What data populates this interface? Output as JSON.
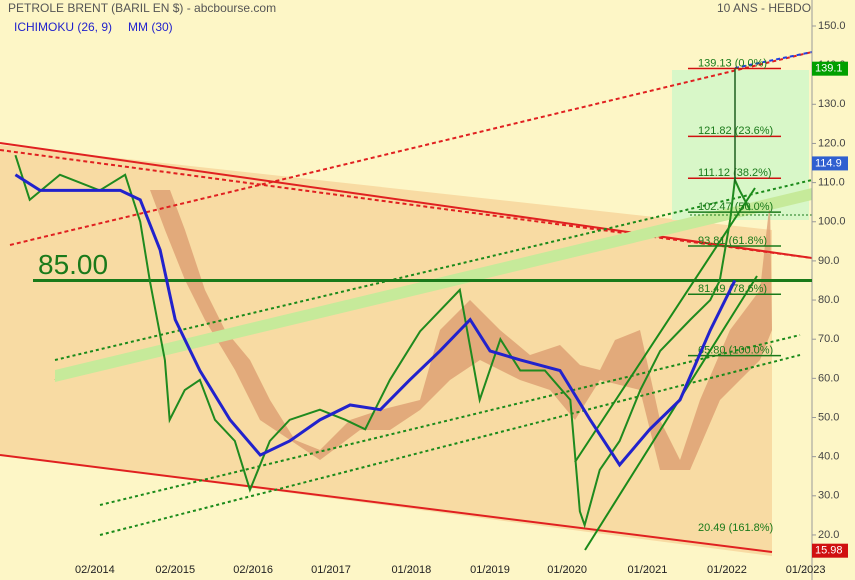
{
  "chart_data": {
    "type": "line",
    "title": "PETROLE BRENT (BARIL EN $) - abcbourse.com",
    "subtitle": "10 ANS - HEBDO",
    "indicators": [
      "ICHIMOKU (26, 9)",
      "MM (30)"
    ],
    "xlim": [
      2012.886,
      2023.1
    ],
    "ylim": [
      15,
      152
    ],
    "xticks": [
      {
        "value": 2014.08,
        "label": "02/2014"
      },
      {
        "value": 2015.09,
        "label": "02/2015"
      },
      {
        "value": 2016.07,
        "label": "02/2016"
      },
      {
        "value": 2017.05,
        "label": "01/2017"
      },
      {
        "value": 2018.06,
        "label": "01/2018"
      },
      {
        "value": 2019.05,
        "label": "01/2019"
      },
      {
        "value": 2020.02,
        "label": "01/2020"
      },
      {
        "value": 2021.03,
        "label": "01/2021"
      },
      {
        "value": 2022.03,
        "label": "01/2022"
      },
      {
        "value": 2023.02,
        "label": "01/2023"
      }
    ],
    "yticks": [
      {
        "value": 150,
        "label": "150.0"
      },
      {
        "value": 140,
        "label": "140.0"
      },
      {
        "value": 130,
        "label": "130.0"
      },
      {
        "value": 120,
        "label": "120.0"
      },
      {
        "value": 110,
        "label": "110.0"
      },
      {
        "value": 100,
        "label": "100.0"
      },
      {
        "value": 90,
        "label": "90.0"
      },
      {
        "value": 80,
        "label": "80.0"
      },
      {
        "value": 70,
        "label": "70.0"
      },
      {
        "value": 60,
        "label": "60.0"
      },
      {
        "value": 50,
        "label": "50.0"
      },
      {
        "value": 40,
        "label": "40.0"
      },
      {
        "value": 30,
        "label": "30.0"
      },
      {
        "value": 20,
        "label": "20.0"
      }
    ],
    "series": [
      {
        "name": "PETROLE BRENT",
        "color": "#1f8a1f",
        "x": [
          2013.08,
          2013.26,
          2013.64,
          2014.14,
          2014.46,
          2014.65,
          2014.77,
          2014.96,
          2015.02,
          2015.21,
          2015.4,
          2015.59,
          2015.84,
          2016.03,
          2016.28,
          2016.53,
          2016.91,
          2017.23,
          2017.48,
          2017.79,
          2018.17,
          2018.67,
          2018.92,
          2019.18,
          2019.43,
          2019.74,
          2020.06,
          2020.18,
          2020.24,
          2020.43,
          2020.68,
          2020.94,
          2021.19,
          2021.57,
          2021.82,
          2021.94,
          2022.07,
          2022.13,
          2022.19,
          2022.32
        ],
        "values": [
          117,
          105.6,
          112,
          108,
          112,
          100,
          85,
          64.7,
          49.4,
          57,
          59.6,
          49.4,
          44,
          31.5,
          44,
          49.4,
          52,
          49.4,
          47,
          59.6,
          72,
          82.6,
          54.5,
          70,
          62,
          62,
          54.5,
          26,
          22.5,
          36.6,
          44,
          57,
          67,
          75,
          80,
          85,
          100.4,
          110.7,
          108,
          103
        ]
      },
      {
        "name": "MM (30)",
        "color": "#2222cc",
        "x": [
          2013.08,
          2013.39,
          2013.89,
          2014.4,
          2014.65,
          2014.9,
          2015.09,
          2015.4,
          2015.78,
          2016.16,
          2016.53,
          2016.91,
          2017.29,
          2017.67,
          2018.04,
          2018.42,
          2018.8,
          2019.05,
          2019.43,
          2019.93,
          2020.31,
          2020.68,
          2021.06,
          2021.44,
          2021.82,
          2022.13
        ],
        "values": [
          112,
          108,
          108,
          108,
          105.6,
          92.8,
          75,
          62,
          49.4,
          40.4,
          44,
          49.4,
          53.2,
          52,
          59.6,
          67,
          75,
          67,
          64.7,
          62,
          49.4,
          37.9,
          47,
          54.5,
          72.3,
          85
        ]
      }
    ],
    "fib_levels": [
      {
        "value": 139.13,
        "label": "139.13  (0.0%)",
        "color": "#d01010"
      },
      {
        "value": 121.82,
        "label": "121.82  (23.6%)",
        "color": "#d01010"
      },
      {
        "value": 111.12,
        "label": "111.12 (38.2%)",
        "color": "#d01010"
      },
      {
        "value": 102.47,
        "label": "102.47 (50.0%)",
        "color": "#1a7a1a"
      },
      {
        "value": 93.81,
        "label": "93.81 (61.8%)",
        "color": "#1a7a1a"
      },
      {
        "value": 81.49,
        "label": "81.49  (78.6%)",
        "color": "#1a7a1a"
      },
      {
        "value": 65.8,
        "label": "65.80 (100.0%)",
        "color": "#1a7a1a"
      },
      {
        "value": 20.49,
        "label": "20.49  (161.8%)",
        "color": "#1a7a1a"
      }
    ],
    "level_line": {
      "value": 85,
      "label": "85.00",
      "color": "#1a7a1a"
    },
    "price_tags": [
      {
        "value": 139.1,
        "color": "#00a000"
      },
      {
        "value": 114.9,
        "color": "#2f5fd0"
      },
      {
        "value": 15.98,
        "color": "#d01010"
      }
    ]
  }
}
